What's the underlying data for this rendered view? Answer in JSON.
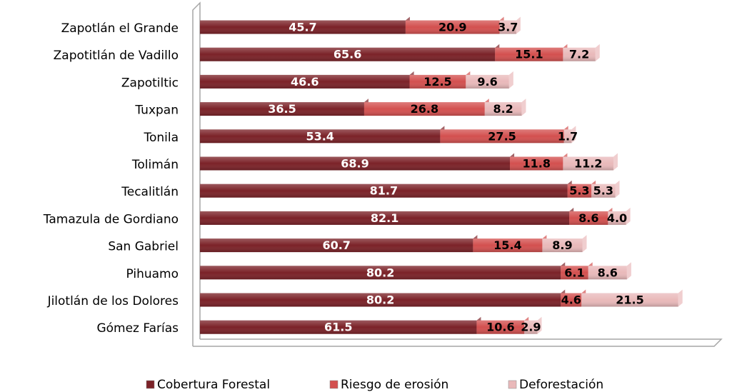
{
  "chart_data": {
    "type": "stacked-barh",
    "categories": [
      "Zapotlán el Grande",
      "Zapotitlán de Vadillo",
      "Zapotiltic",
      "Tuxpan",
      "Tonila",
      "Tolimán",
      "Tecalitlán",
      "Tamazula de Gordiano",
      "San Gabriel",
      "Pihuamo",
      "Jilotlán de los Dolores",
      "Gómez Farías"
    ],
    "series": [
      {
        "name": "Cobertura Forestal",
        "color": "#7b2228",
        "values": [
          45.7,
          65.6,
          46.6,
          36.5,
          53.4,
          68.9,
          81.7,
          82.1,
          60.7,
          80.2,
          80.2,
          61.5
        ]
      },
      {
        "name": "Riesgo de erosión",
        "color": "#d3504f",
        "values": [
          20.9,
          15.1,
          12.5,
          26.8,
          27.5,
          11.8,
          5.3,
          8.6,
          15.4,
          6.1,
          4.6,
          10.6
        ]
      },
      {
        "name": "Deforestación",
        "color": "#e9b9ba",
        "values": [
          3.7,
          7.2,
          9.6,
          8.2,
          1.7,
          11.2,
          5.3,
          4,
          8.9,
          8.6,
          21.5,
          2.9
        ],
        "value_labels": [
          "3.7",
          "7.2",
          "9.6",
          "8.2",
          "1.7",
          "11.2",
          "5.3",
          "4.0",
          "8.9",
          "8.6",
          "21.5",
          "2.9"
        ]
      }
    ],
    "legend": "bottom"
  }
}
